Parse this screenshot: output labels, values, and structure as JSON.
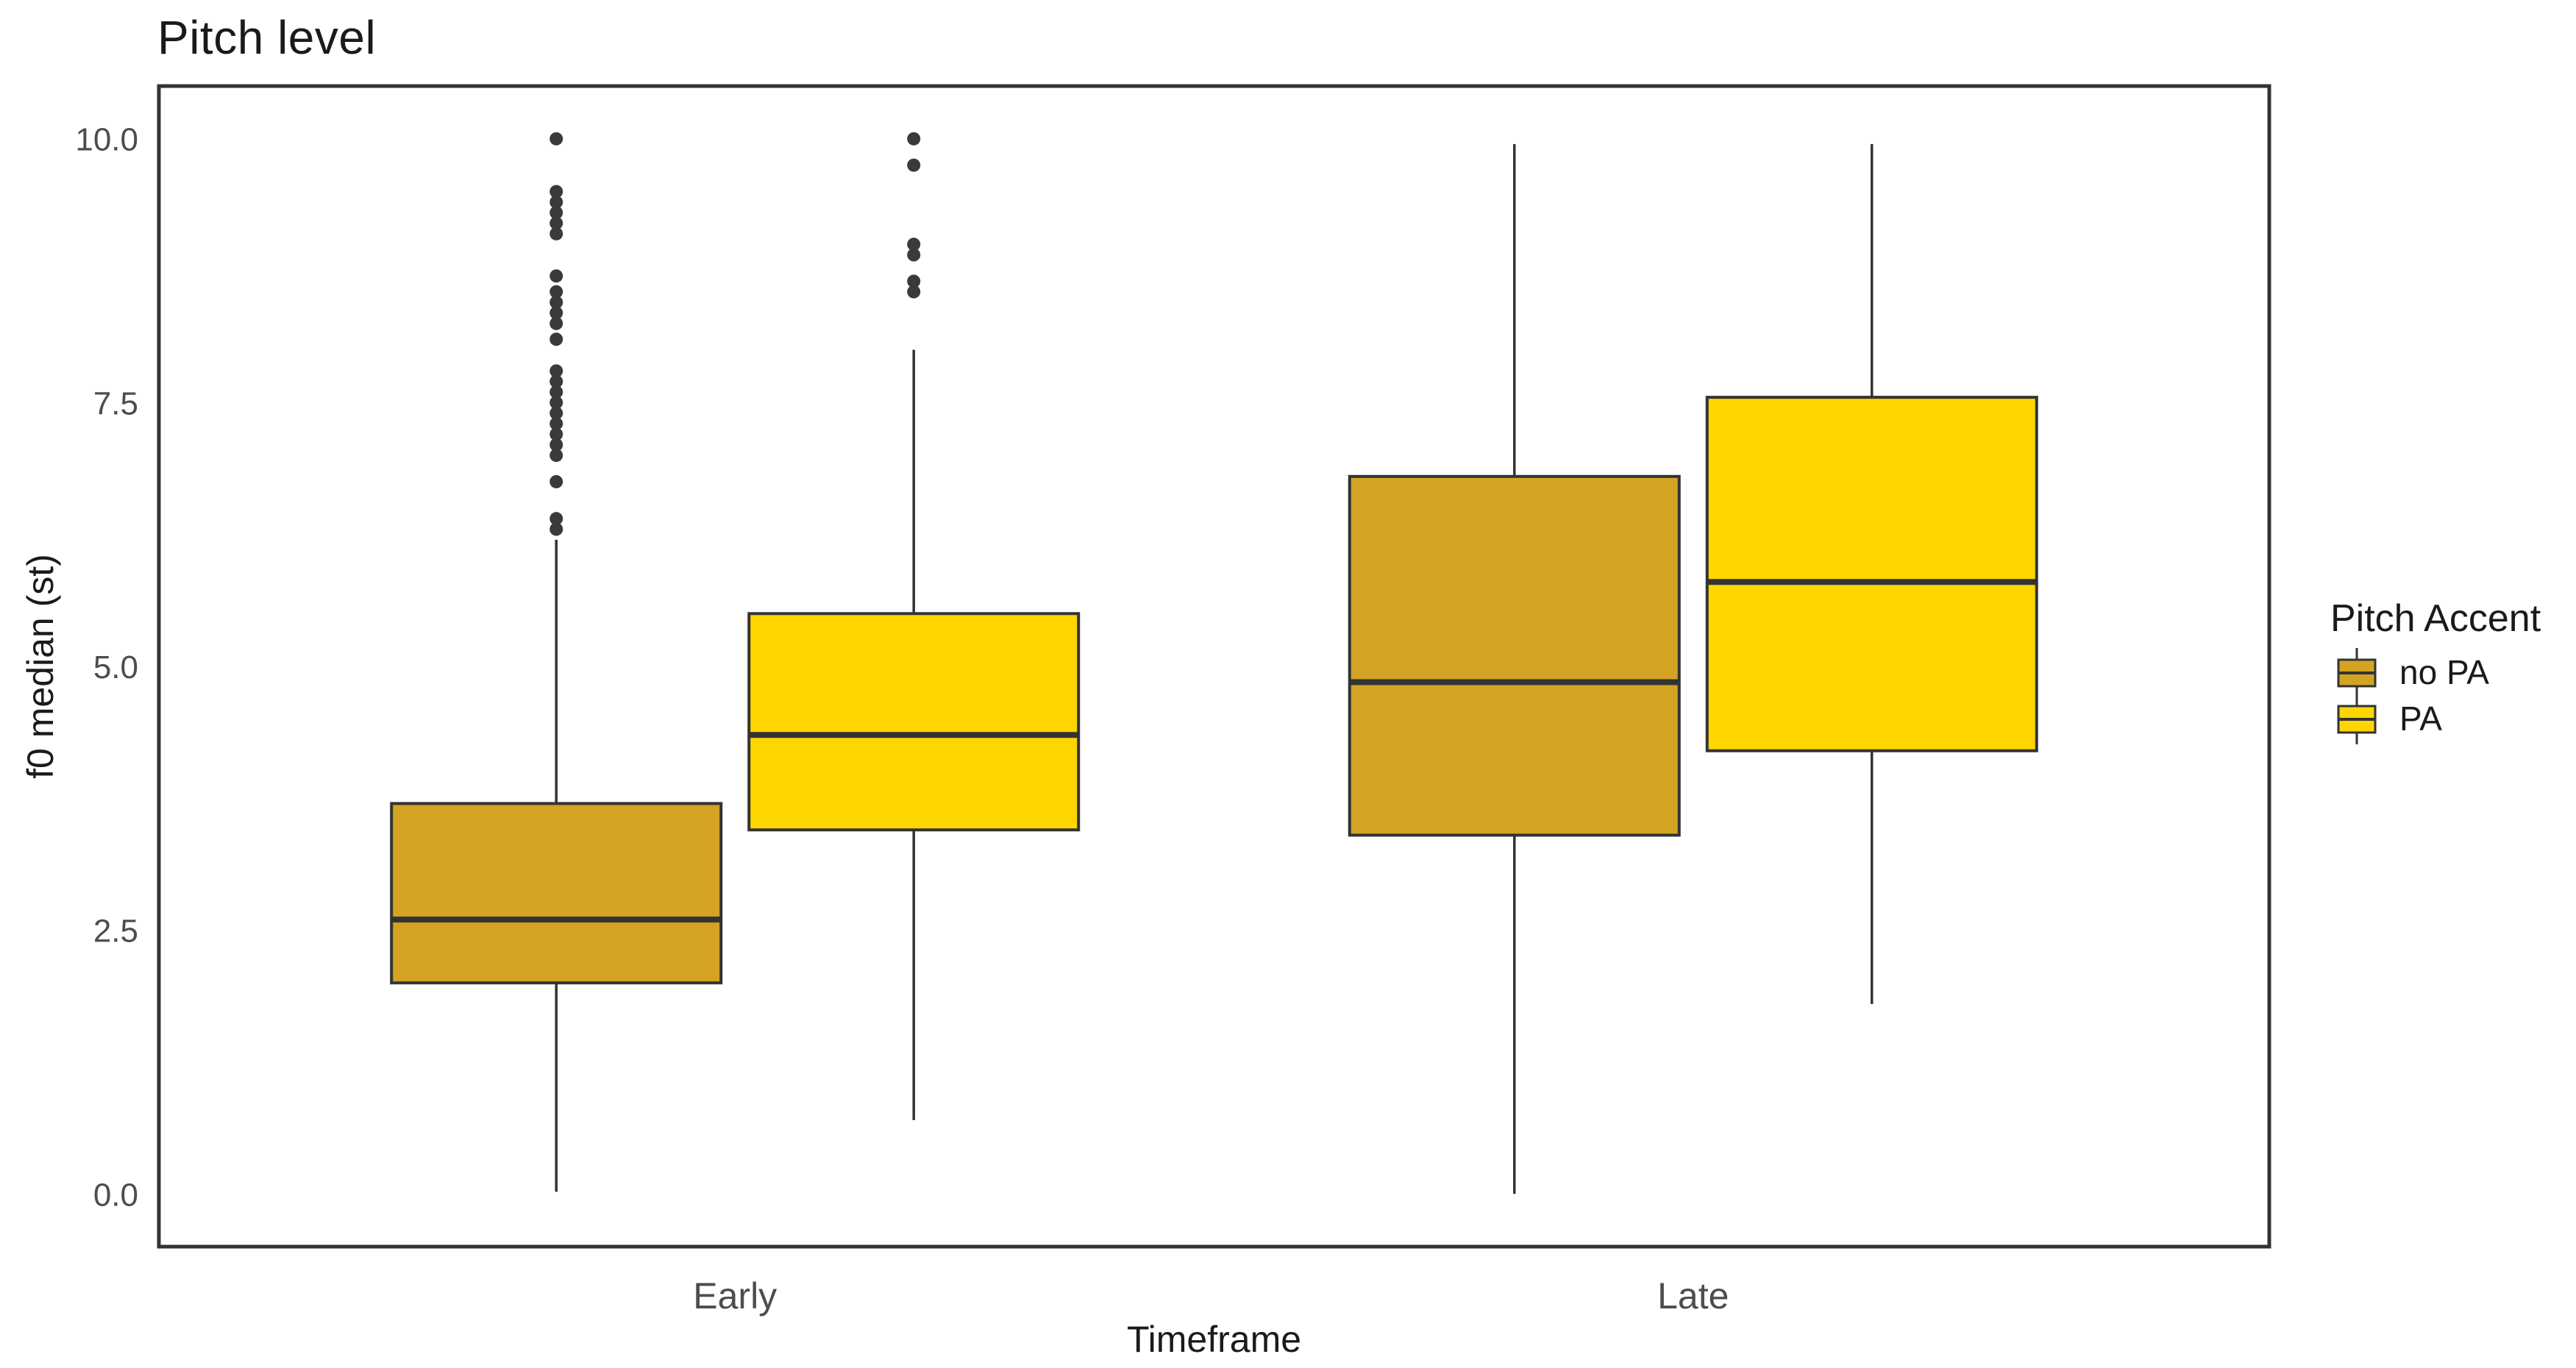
{
  "chart_data": {
    "type": "boxplot",
    "title": "Pitch level",
    "xlabel": "Timeframe",
    "ylabel": "f0 median (st)",
    "categories": [
      "Early",
      "Late"
    ],
    "y_ticks": [
      {
        "value": 0.0,
        "label": "0.0"
      },
      {
        "value": 2.5,
        "label": "2.5"
      },
      {
        "value": 5.0,
        "label": "5.0"
      },
      {
        "value": 7.5,
        "label": "7.5"
      },
      {
        "value": 10.0,
        "label": "10.0"
      }
    ],
    "ylim": [
      -0.5,
      10.5
    ],
    "grid": false,
    "legend": {
      "title": "Pitch Accent",
      "position": "right",
      "entries": [
        {
          "label": "no PA",
          "color": "#D4A323"
        },
        {
          "label": "PA",
          "color": "#FFD600"
        }
      ]
    },
    "colors": {
      "outline": "#333333",
      "tick_text": "#4D4D4D",
      "text": "#1A1A1A",
      "panel_border": "#333333"
    },
    "series": [
      {
        "name": "no PA",
        "fill": "#D4A323",
        "boxes": [
          {
            "category": "Early",
            "whisker_low": 0.02,
            "q1": 2.0,
            "median": 2.6,
            "q3": 3.7,
            "whisker_high": 6.2,
            "outliers": [
              10.0,
              9.5,
              9.4,
              9.3,
              9.2,
              9.1,
              8.7,
              8.55,
              8.45,
              8.35,
              8.25,
              8.1,
              7.8,
              7.7,
              7.6,
              7.5,
              7.4,
              7.3,
              7.2,
              7.1,
              7.0,
              6.75,
              6.4,
              6.3
            ]
          },
          {
            "category": "Late",
            "whisker_low": 0.0,
            "q1": 3.4,
            "median": 4.85,
            "q3": 6.8,
            "whisker_high": 9.95,
            "outliers": []
          }
        ]
      },
      {
        "name": "PA",
        "fill": "#FFD600",
        "boxes": [
          {
            "category": "Early",
            "whisker_low": 0.7,
            "q1": 3.45,
            "median": 4.35,
            "q3": 5.5,
            "whisker_high": 8.0,
            "outliers": [
              10.0,
              9.75,
              9.0,
              8.9,
              8.65,
              8.55
            ]
          },
          {
            "category": "Late",
            "whisker_low": 1.8,
            "q1": 4.2,
            "median": 5.8,
            "q3": 7.55,
            "whisker_high": 9.95,
            "outliers": []
          }
        ]
      }
    ]
  }
}
